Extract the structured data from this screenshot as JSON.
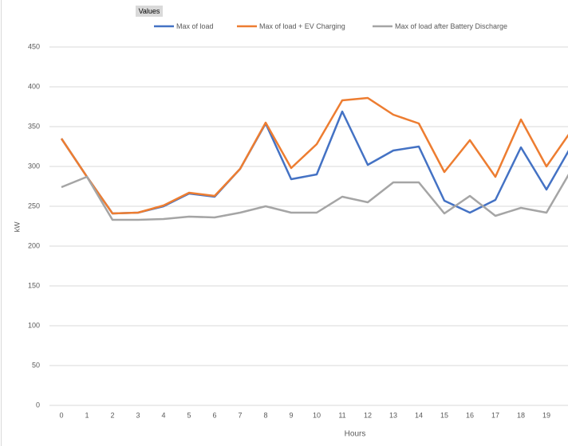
{
  "chart_data": {
    "type": "line",
    "filter_label": "Values",
    "x_label": "Hours",
    "y_label": "kW",
    "categories": [
      "0",
      "1",
      "2",
      "3",
      "4",
      "5",
      "6",
      "7",
      "8",
      "9",
      "10",
      "11",
      "12",
      "13",
      "14",
      "15",
      "16",
      "17",
      "18",
      "19",
      null
    ],
    "series": [
      {
        "name": "Max of load",
        "color": "#4472c4",
        "values": [
          335,
          287,
          241,
          242,
          250,
          266,
          262,
          297,
          354,
          284,
          290,
          369,
          302,
          320,
          325,
          257,
          242,
          258,
          324,
          271,
          327
        ]
      },
      {
        "name": "Max of load + EV Charging",
        "color": "#ed7d31",
        "values": [
          335,
          287,
          241,
          242,
          251,
          267,
          263,
          297,
          355,
          298,
          328,
          383,
          386,
          365,
          354,
          293,
          333,
          287,
          359,
          300,
          346
        ]
      },
      {
        "name": "Max of load after Battery Discharge",
        "color": "#a5a5a5",
        "values": [
          274,
          287,
          233,
          233,
          234,
          237,
          236,
          242,
          250,
          242,
          242,
          262,
          255,
          280,
          280,
          241,
          263,
          238,
          248,
          242,
          297
        ]
      }
    ],
    "ylim": [
      0,
      450
    ],
    "yticks": [
      0,
      50,
      100,
      150,
      200,
      250,
      300,
      350,
      400,
      450
    ],
    "grid": true,
    "legend": "top"
  }
}
